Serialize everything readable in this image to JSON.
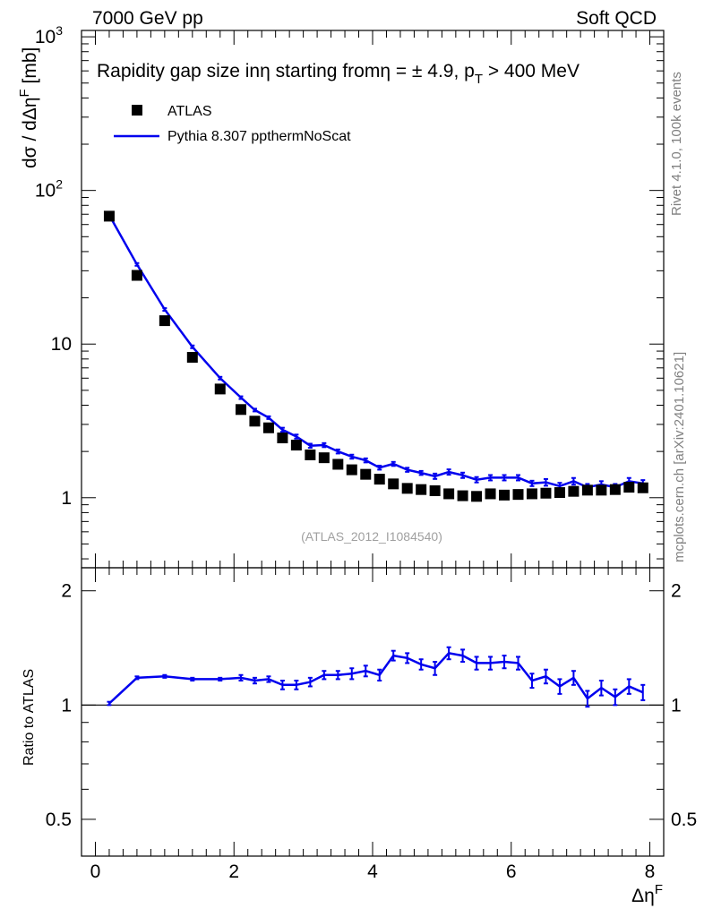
{
  "header": {
    "left": "7000 GeV pp",
    "right": "Soft QCD"
  },
  "side_labels": {
    "rivet": "Rivet 4.1.0,  100k events",
    "mcplots": "mcplots.cern.ch [arXiv:2401.10621]"
  },
  "colors": {
    "data": "#000000",
    "mc": "#0000ee",
    "watermark": "#a0a0a0"
  },
  "chart_data": [
    {
      "type": "scatter",
      "title": "Rapidity gap size inη starting fromη = ± 4.9, p_T > 400 MeV",
      "title_parts": {
        "main": "Rapidity gap size inη starting fromη = ± 4.9, p",
        "sub": "T",
        "tail": " > 400 MeV"
      },
      "ylabel": "dσ / dΔη^F [mb]",
      "ylabel_parts": {
        "main": "dσ / dΔη",
        "sup": "F",
        "tail": " [mb]"
      },
      "xlabel": "Δη^F",
      "yscale": "log",
      "ylim": [
        0.35,
        1100
      ],
      "xlim": [
        -0.2,
        8.2
      ],
      "yticks_major": [
        {
          "value": 1,
          "label": "1"
        },
        {
          "value": 10,
          "label": "10"
        },
        {
          "value": 100,
          "label": "10",
          "sup": "2"
        },
        {
          "value": 1000,
          "label": "10",
          "sup": "3"
        }
      ],
      "legend": {
        "position": "top-left",
        "entries": [
          {
            "name": "ATLAS",
            "style": "marker"
          },
          {
            "name": "Pythia 8.307 ppthermNoScat",
            "style": "line"
          }
        ]
      },
      "watermark": "(ATLAS_2012_I1084540)",
      "x": [
        0.2,
        0.6,
        1.0,
        1.4,
        1.8,
        2.1,
        2.3,
        2.5,
        2.7,
        2.9,
        3.1,
        3.3,
        3.5,
        3.7,
        3.9,
        4.1,
        4.3,
        4.5,
        4.7,
        4.9,
        5.1,
        5.3,
        5.5,
        5.7,
        5.9,
        6.1,
        6.3,
        6.5,
        6.7,
        6.9,
        7.1,
        7.3,
        7.5,
        7.7,
        7.9
      ],
      "series": [
        {
          "name": "ATLAS",
          "values": [
            68,
            28,
            14.2,
            8.2,
            5.1,
            3.75,
            3.15,
            2.85,
            2.45,
            2.2,
            1.9,
            1.82,
            1.65,
            1.52,
            1.42,
            1.32,
            1.23,
            1.15,
            1.13,
            1.11,
            1.06,
            1.03,
            1.02,
            1.06,
            1.04,
            1.05,
            1.06,
            1.07,
            1.08,
            1.1,
            1.12,
            1.12,
            1.13,
            1.17,
            1.16
          ]
        },
        {
          "name": "Pythia 8.307 ppthermNoScat",
          "values": [
            69,
            33,
            16.8,
            9.6,
            6.0,
            4.48,
            3.72,
            3.32,
            2.77,
            2.5,
            2.18,
            2.2,
            2.0,
            1.85,
            1.75,
            1.57,
            1.66,
            1.52,
            1.45,
            1.38,
            1.47,
            1.4,
            1.31,
            1.35,
            1.35,
            1.35,
            1.24,
            1.26,
            1.19,
            1.28,
            1.17,
            1.22,
            1.17,
            1.28,
            1.24
          ],
          "errors": [
            0.02,
            0.02,
            0.02,
            0.02,
            0.02,
            0.02,
            0.02,
            0.02,
            0.03,
            0.03,
            0.03,
            0.03,
            0.03,
            0.03,
            0.03,
            0.03,
            0.03,
            0.03,
            0.03,
            0.04,
            0.04,
            0.04,
            0.04,
            0.04,
            0.04,
            0.04,
            0.04,
            0.05,
            0.05,
            0.05,
            0.05,
            0.05,
            0.05,
            0.05,
            0.05
          ]
        }
      ]
    },
    {
      "type": "line",
      "title": "",
      "ylabel": "Ratio to ATLAS",
      "xlabel": "Δη^F",
      "xlim": [
        -0.2,
        8.2
      ],
      "ylim": [
        0.4,
        2.3
      ],
      "yticks_major": [
        {
          "value": 0.5,
          "label": "0.5"
        },
        {
          "value": 1,
          "label": "1"
        },
        {
          "value": 2,
          "label": "2"
        }
      ],
      "xticks_major": [
        {
          "value": 0,
          "label": "0"
        },
        {
          "value": 2,
          "label": "2"
        },
        {
          "value": 4,
          "label": "4"
        },
        {
          "value": 6,
          "label": "6"
        },
        {
          "value": 8,
          "label": "8"
        }
      ],
      "reference_line": 1,
      "x": [
        0.2,
        0.6,
        1.0,
        1.4,
        1.8,
        2.1,
        2.3,
        2.5,
        2.7,
        2.9,
        3.1,
        3.3,
        3.5,
        3.7,
        3.9,
        4.1,
        4.3,
        4.5,
        4.7,
        4.9,
        5.1,
        5.3,
        5.5,
        5.7,
        5.9,
        6.1,
        6.3,
        6.5,
        6.7,
        6.9,
        7.1,
        7.3,
        7.5,
        7.7,
        7.9
      ],
      "series": [
        {
          "name": "Pythia 8.307 ppthermNoScat",
          "values": [
            1.01,
            1.18,
            1.19,
            1.17,
            1.17,
            1.18,
            1.16,
            1.17,
            1.13,
            1.13,
            1.15,
            1.2,
            1.2,
            1.21,
            1.23,
            1.2,
            1.35,
            1.33,
            1.28,
            1.25,
            1.37,
            1.35,
            1.29,
            1.29,
            1.3,
            1.29,
            1.16,
            1.19,
            1.12,
            1.18,
            1.04,
            1.11,
            1.05,
            1.12,
            1.08
          ],
          "errors": [
            0.01,
            0.01,
            0.01,
            0.01,
            0.01,
            0.02,
            0.02,
            0.02,
            0.03,
            0.03,
            0.03,
            0.03,
            0.03,
            0.04,
            0.04,
            0.04,
            0.04,
            0.04,
            0.04,
            0.05,
            0.05,
            0.05,
            0.05,
            0.05,
            0.05,
            0.05,
            0.05,
            0.05,
            0.05,
            0.05,
            0.05,
            0.05,
            0.05,
            0.05,
            0.05
          ]
        }
      ]
    }
  ]
}
